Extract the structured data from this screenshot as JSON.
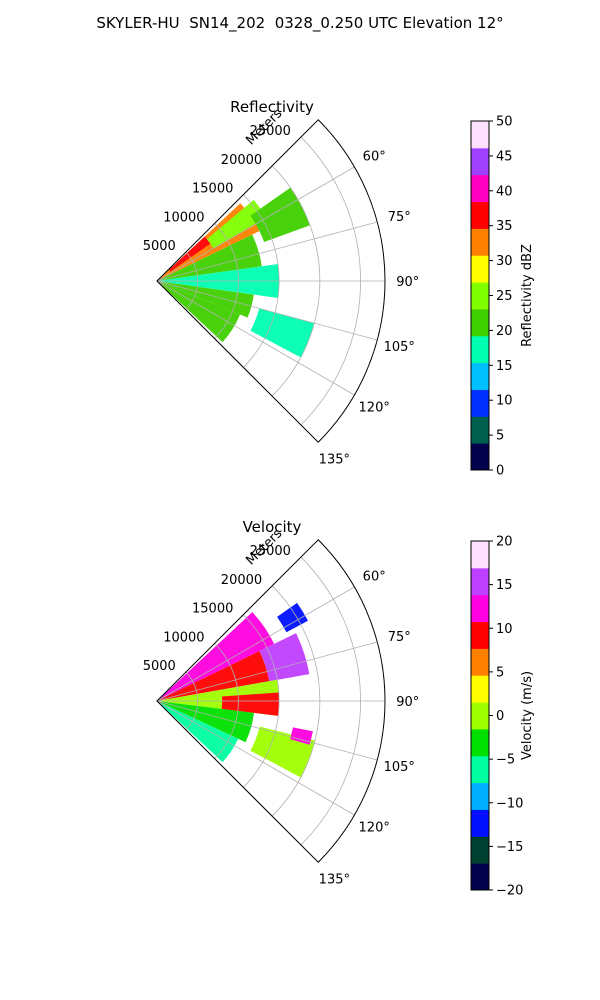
{
  "suptitle": "SKYLER-HU  SN14_202  0328_0.250 UTC Elevation 12°",
  "chart_data": [
    {
      "type": "polar_sector",
      "title": "Reflectivity",
      "range_label": "Meters",
      "r_ticks": [
        5000,
        10000,
        15000,
        20000,
        25000
      ],
      "r_tick_labels": [
        "5000",
        "10000",
        "15000",
        "20000",
        "25000"
      ],
      "r_max": 28000,
      "theta_range_deg": [
        45,
        135
      ],
      "theta_ticks": [
        60,
        75,
        90,
        105,
        120,
        135
      ],
      "theta_tick_labels": [
        "60°",
        "75°",
        "90°",
        "105°",
        "120°",
        "135°"
      ],
      "grid": true,
      "colorbar": {
        "label": "Reflectivity dBZ",
        "vmin": 0,
        "vmax": 50,
        "ticks": [
          0,
          5,
          10,
          15,
          20,
          25,
          30,
          35,
          40,
          45,
          50
        ],
        "tick_labels": [
          "0",
          "5",
          "10",
          "15",
          "20",
          "25",
          "30",
          "35",
          "40",
          "45",
          "50"
        ],
        "colors": [
          "#00004c",
          "#006050",
          "#0030ff",
          "#00c0ff",
          "#00ffb0",
          "#40d000",
          "#80ff00",
          "#ffff00",
          "#ff8000",
          "#ff0000",
          "#ff00c0",
          "#a040ff",
          "#ffe0ff"
        ]
      },
      "echoes": [
        {
          "az": [
            47,
            64
          ],
          "r": [
            0,
            14000
          ],
          "value": 33
        },
        {
          "az": [
            47,
            55
          ],
          "r": [
            2000,
            8000
          ],
          "value": 37
        },
        {
          "az": [
            50,
            60
          ],
          "r": [
            8000,
            15500
          ],
          "value": 24
        },
        {
          "az": [
            55,
            70
          ],
          "r": [
            14000,
            20000
          ],
          "value": 20
        },
        {
          "az": [
            64,
            82
          ],
          "r": [
            0,
            13000
          ],
          "value": 21
        },
        {
          "az": [
            82,
            98
          ],
          "r": [
            0,
            15000
          ],
          "value": 19
        },
        {
          "az": [
            98,
            112
          ],
          "r": [
            0,
            12000
          ],
          "value": 23
        },
        {
          "az": [
            112,
            133
          ],
          "r": [
            0,
            11000
          ],
          "value": 20
        },
        {
          "az": [
            105,
            118
          ],
          "r": [
            13000,
            20000
          ],
          "value": 19
        }
      ]
    },
    {
      "type": "polar_sector",
      "title": "Velocity",
      "range_label": "Meters",
      "r_ticks": [
        5000,
        10000,
        15000,
        20000,
        25000
      ],
      "r_tick_labels": [
        "5000",
        "10000",
        "15000",
        "20000",
        "25000"
      ],
      "r_max": 28000,
      "theta_range_deg": [
        45,
        135
      ],
      "theta_ticks": [
        60,
        75,
        90,
        105,
        120,
        135
      ],
      "theta_tick_labels": [
        "60°",
        "75°",
        "90°",
        "105°",
        "120°",
        "135°"
      ],
      "grid": true,
      "colorbar": {
        "label": "Velocity (m/s)",
        "vmin": -20,
        "vmax": 20,
        "ticks": [
          -20,
          -15,
          -10,
          -5,
          0,
          5,
          10,
          15,
          20
        ],
        "tick_labels": [
          "−20",
          "−15",
          "−10",
          "−5",
          "0",
          "5",
          "10",
          "15",
          "20"
        ],
        "colors": [
          "#00004c",
          "#004030",
          "#0010ff",
          "#00b0ff",
          "#00ffa0",
          "#00e000",
          "#a0ff00",
          "#ffff00",
          "#ff8000",
          "#ff0000",
          "#ff00e0",
          "#c040ff",
          "#ffe0ff"
        ]
      },
      "echoes": [
        {
          "az": [
            47,
            64
          ],
          "r": [
            0,
            16000
          ],
          "value": 13
        },
        {
          "az": [
            64,
            80
          ],
          "r": [
            0,
            14000
          ],
          "value": 9
        },
        {
          "az": [
            64,
            80
          ],
          "r": [
            14000,
            19000
          ],
          "value": 14
        },
        {
          "az": [
            55,
            62
          ],
          "r": [
            18000,
            21000
          ],
          "value": -12
        },
        {
          "az": [
            80,
            97
          ],
          "r": [
            0,
            15000
          ],
          "value": 1
        },
        {
          "az": [
            86,
            97
          ],
          "r": [
            8000,
            15000
          ],
          "value": 9
        },
        {
          "az": [
            97,
            115
          ],
          "r": [
            0,
            12000
          ],
          "value": -2
        },
        {
          "az": [
            115,
            133
          ],
          "r": [
            0,
            11000
          ],
          "value": -7
        },
        {
          "az": [
            104,
            118
          ],
          "r": [
            13000,
            20000
          ],
          "value": 0
        },
        {
          "az": [
            101,
            106
          ],
          "r": [
            17000,
            19500
          ],
          "value": 12
        }
      ]
    }
  ]
}
